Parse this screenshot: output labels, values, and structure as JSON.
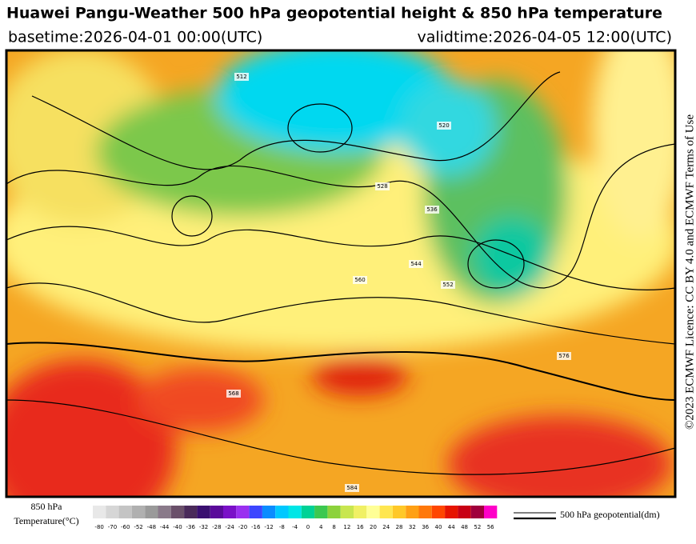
{
  "header": {
    "title": "Huawei Pangu-Weather 500 hPa geopotential height & 850 hPa temperature",
    "basetime": "basetime:2026-04-01 00:00(UTC)",
    "validtime": "validtime:2026-04-05 12:00(UTC)"
  },
  "side_text": "©2023 ECMWF Licence: CC BY 4.0 and ECMWF Terms of Use",
  "map": {
    "contour_labels": [
      "512",
      "520",
      "528",
      "536",
      "544",
      "552",
      "560",
      "568",
      "576",
      "584"
    ]
  },
  "legend": {
    "colorbar": {
      "label": [
        "850 hPa",
        "Temperature(°C)"
      ],
      "ticks": [
        -80,
        -70,
        -60,
        -52,
        -48,
        -44,
        -40,
        -36,
        -32,
        -28,
        -24,
        -20,
        -16,
        -12,
        -8,
        -4,
        0,
        4,
        8,
        12,
        16,
        20,
        24,
        28,
        32,
        36,
        40,
        44,
        48,
        52,
        56
      ],
      "colors": [
        "#e8e8e8",
        "#d6d6d6",
        "#c4c4c4",
        "#b0b0b0",
        "#9a9a9a",
        "#8a7a8a",
        "#6a506a",
        "#4a2a5a",
        "#3a1070",
        "#5a0a9a",
        "#7a10c8",
        "#9a30f0",
        "#3c46ff",
        "#0a8cff",
        "#00c8ff",
        "#00e6e6",
        "#00d296",
        "#3cc850",
        "#8cd23c",
        "#c8e650",
        "#f0f064",
        "#ffff96",
        "#ffe650",
        "#ffc828",
        "#ffa014",
        "#ff780a",
        "#ff4600",
        "#e61400",
        "#c80014",
        "#a0003c",
        "#ff00c8"
      ]
    },
    "contour_label": "500 hPa geopotential(dm)"
  }
}
